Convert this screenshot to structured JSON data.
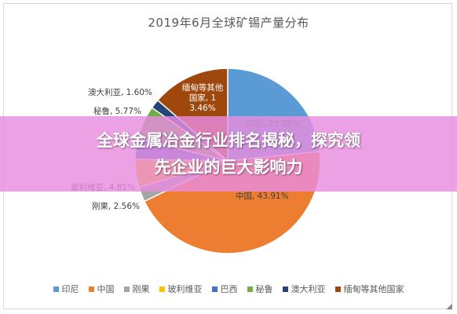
{
  "chart_data": {
    "type": "pie",
    "title": "2019年6月全球矿锡产量分布",
    "slices": [
      {
        "name": "印尼",
        "value": 23.08,
        "label": "印尼, 23.08%",
        "color": "#5b9bd5"
      },
      {
        "name": "中国",
        "value": 43.91,
        "label": "中国, 43.91%",
        "color": "#ed7d31"
      },
      {
        "name": "刚果",
        "value": 2.56,
        "label": "刚果, 2.56%",
        "color": "#a5a5a5"
      },
      {
        "name": "玻利维亚",
        "value": 4.81,
        "label": "玻利维亚, 4.81%",
        "color": "#ffc000"
      },
      {
        "name": "巴西",
        "value": 3.59,
        "label": "",
        "color": "#4472c4"
      },
      {
        "name": "秘鲁",
        "value": 5.77,
        "label": "秘鲁, 5.77%",
        "color": "#70ad47"
      },
      {
        "name": "澳大利亚",
        "value": 1.6,
        "label": "澳大利亚, 1.60%",
        "color": "#264478"
      },
      {
        "name": "缅甸等其他国家",
        "value": 13.46,
        "label": "缅甸等其他国家, 13.46%",
        "color": "#9e480e"
      }
    ],
    "legend_position": "bottom"
  },
  "banner": {
    "line1": "全球金属冶金行业排名揭秘，探究领",
    "line2": "先企业的巨大影响力"
  },
  "corner": {
    "icon": "resize-icon"
  }
}
